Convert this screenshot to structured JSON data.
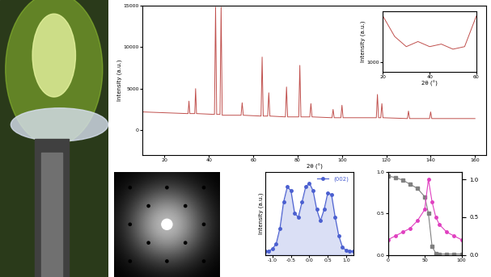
{
  "chart_data": [
    {
      "type": "line",
      "xlabel": "2θ (°)",
      "ylabel": "Intensity (a.u.)",
      "x": [
        10,
        30,
        30.6,
        31,
        31.4,
        33.6,
        34,
        34.4,
        42.5,
        43,
        43.5,
        45,
        45.5,
        46,
        54.5,
        55,
        55.5,
        63.5,
        64,
        64.5,
        66.5,
        67,
        67.5,
        74.5,
        75,
        75.5,
        80.5,
        81,
        81.5,
        85.5,
        86,
        86.5,
        95.5,
        96,
        96.5,
        99.5,
        100,
        100.5,
        115.5,
        116,
        116.5,
        117.5,
        118,
        118.5,
        129.5,
        130,
        130.5,
        139.5,
        140,
        140.5,
        160
      ],
      "values": [
        2200,
        2000,
        2000,
        3500,
        2000,
        2000,
        5000,
        2000,
        1900,
        14800,
        1900,
        1900,
        14800,
        1800,
        1800,
        3300,
        1800,
        1700,
        8800,
        1700,
        1700,
        4500,
        1700,
        1600,
        5200,
        1600,
        1600,
        7800,
        1600,
        1600,
        3200,
        1600,
        1500,
        2500,
        1500,
        1500,
        3000,
        1500,
        1500,
        4300,
        1500,
        1500,
        3200,
        1500,
        1400,
        2300,
        1400,
        1400,
        2200,
        1400,
        1400
      ],
      "color": "#c0504d",
      "xlim": [
        10,
        165
      ],
      "ylim": [
        -3000,
        15000
      ],
      "xticks": [
        20,
        40,
        60,
        80,
        100,
        120,
        140,
        160
      ],
      "yticks": [
        0,
        5000,
        10000,
        15000
      ]
    },
    {
      "type": "line",
      "xlabel": "2θ (°)",
      "ylabel": "Intensity (a.u.)",
      "x": [
        20,
        25,
        30,
        35,
        40,
        45,
        50,
        55,
        60
      ],
      "values": [
        1900,
        1500,
        1300,
        1400,
        1300,
        1350,
        1250,
        1300,
        1900
      ],
      "color": "#c0504d",
      "xlim": [
        20,
        60
      ],
      "ylim": [
        800,
        2000
      ],
      "xticks": [
        20,
        40,
        60
      ],
      "yticks": [
        1000
      ]
    },
    {
      "type": "line",
      "ylabel": "Intensity (a.u.)",
      "series": [
        {
          "name": "(002)",
          "color": "#4a5fd0",
          "marker": "circle",
          "values": [
            0.05,
            0.05,
            0.08,
            0.15,
            0.35,
            0.7,
            0.9,
            0.85,
            0.55,
            0.5,
            0.7,
            0.9,
            0.95,
            0.85,
            0.6,
            0.45,
            0.6,
            0.82,
            0.8,
            0.5,
            0.25,
            0.1,
            0.06,
            0.05,
            0.05
          ]
        }
      ],
      "x": [
        -1.2,
        -1.1,
        -1.0,
        -0.9,
        -0.8,
        -0.7,
        -0.6,
        -0.5,
        -0.4,
        -0.3,
        -0.2,
        -0.1,
        0.0,
        0.1,
        0.2,
        0.3,
        0.4,
        0.5,
        0.6,
        0.7,
        0.8,
        0.9,
        1.0,
        1.1,
        1.2
      ],
      "xlim": [
        -1.2,
        1.2
      ],
      "ylim": [
        0,
        1.1
      ],
      "xticks": [
        -1.0,
        -0.5,
        0.0,
        0.5,
        1.0
      ],
      "tick_labels": "x",
      "legend": "upper right"
    },
    {
      "type": "line",
      "x": [
        0,
        10,
        20,
        30,
        40,
        50,
        55,
        60,
        65,
        70,
        80,
        90,
        100
      ],
      "series": [
        {
          "color": "#808080",
          "marker": "square",
          "values": [
            0.95,
            0.93,
            0.9,
            0.85,
            0.8,
            0.7,
            0.5,
            0.1,
            0.02,
            0.01,
            0.01,
            0.01,
            0.01
          ]
        },
        {
          "color": "#e040c0",
          "marker": "circle",
          "axis": "y2",
          "values": [
            0.2,
            0.25,
            0.3,
            0.35,
            0.45,
            0.6,
            1.0,
            0.7,
            0.5,
            0.4,
            0.3,
            0.25,
            0.2
          ]
        }
      ],
      "xlim": [
        0,
        100
      ],
      "ylim": [
        0,
        1
      ],
      "y2lim": [
        0,
        1.1
      ],
      "xticks": [
        0,
        50,
        100
      ],
      "yticks": [
        0.0,
        0.5,
        1.0
      ],
      "y2ticks": [
        0.0,
        0.5,
        1.0
      ]
    }
  ]
}
